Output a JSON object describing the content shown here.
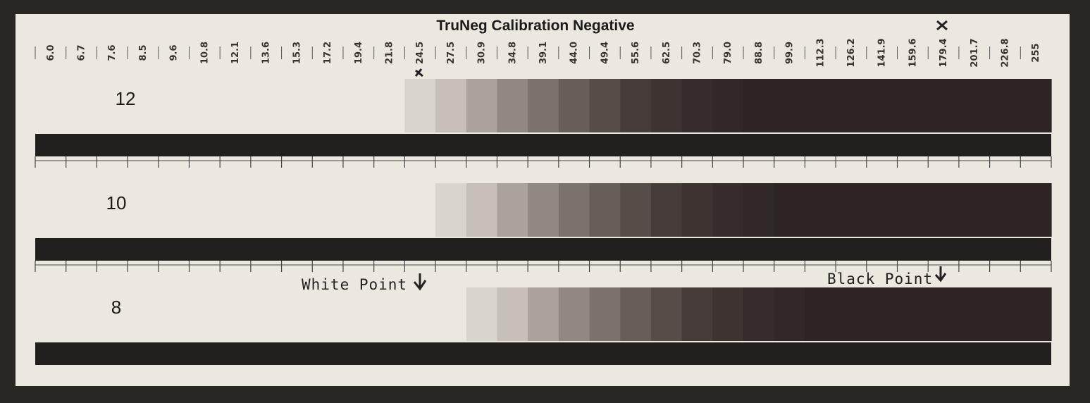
{
  "title": "TruNeg Calibration Negative",
  "columns": [
    "6.0",
    "6.7",
    "7.6",
    "8.5",
    "9.6",
    "10.8",
    "12.1",
    "13.6",
    "15.3",
    "17.2",
    "19.4",
    "21.8",
    "24.5",
    "27.5",
    "30.9",
    "34.8",
    "39.1",
    "44.0",
    "49.4",
    "55.6",
    "62.5",
    "70.3",
    "79.0",
    "88.8",
    "99.9",
    "112.3",
    "126.2",
    "141.9",
    "159.6",
    "179.4",
    "201.7",
    "226.8",
    "255"
  ],
  "rows": [
    {
      "label": "12"
    },
    {
      "label": "10"
    },
    {
      "label": "8"
    }
  ],
  "annotations": {
    "white_point": "White Point",
    "black_point": "Black Point"
  }
}
